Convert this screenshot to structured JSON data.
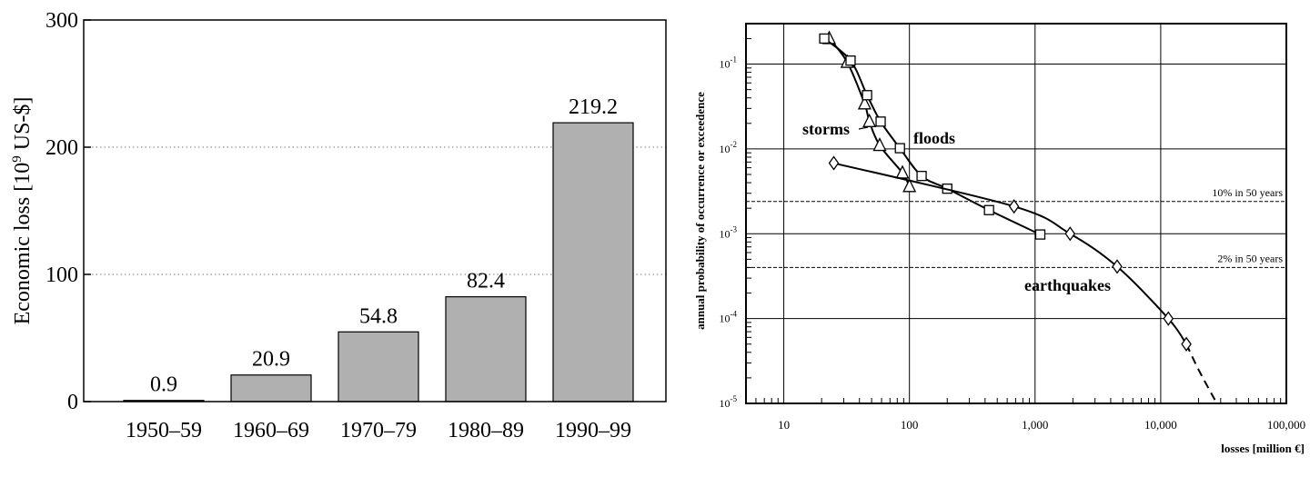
{
  "chart_data": [
    {
      "type": "bar",
      "title": "",
      "xlabel": "",
      "ylabel_main": "Economic loss [10",
      "ylabel_sup": "9",
      "ylabel_tail": " US-$]",
      "categories": [
        "1950–59",
        "1960–69",
        "1970–79",
        "1980–89",
        "1990–99"
      ],
      "values": [
        0.9,
        20.9,
        54.8,
        82.4,
        219.2
      ],
      "value_labels": [
        "0.9",
        "20.9",
        "54.8",
        "82.4",
        "219.2"
      ],
      "ylim": [
        0,
        300
      ],
      "yticks": [
        0,
        100,
        200,
        300
      ],
      "ytick_labels": [
        "0",
        "100",
        "200",
        "300"
      ],
      "grid": "horizontal dotted at 100 and 200",
      "bar_color": "#b0b0b0"
    },
    {
      "type": "line",
      "xscale": "log",
      "yscale": "log",
      "xlabel": "losses [million €]",
      "ylabel": "annual probability of occurrence or exceedence",
      "xlim": [
        5,
        100000
      ],
      "ylim": [
        1e-05,
        0.3
      ],
      "xticks": [
        10,
        100,
        1000,
        10000,
        100000
      ],
      "xtick_labels": [
        "10",
        "100",
        "1,000",
        "10,000",
        "100,000"
      ],
      "yticks": [
        0.1,
        0.01,
        0.001,
        0.0001,
        1e-05
      ],
      "ytick_base": [
        "10",
        "10",
        "10",
        "10",
        "10"
      ],
      "ytick_exp": [
        "-1",
        "-2",
        "-3",
        "-4",
        "-5"
      ],
      "grid": true,
      "series": [
        {
          "name": "storms",
          "marker": "triangle",
          "x": [
            23,
            32,
            44,
            48,
            58,
            88,
            100
          ],
          "y": [
            0.2,
            0.105,
            0.034,
            0.021,
            0.011,
            0.0052,
            0.0036
          ]
        },
        {
          "name": "floods",
          "marker": "square",
          "x": [
            21,
            34,
            46,
            59,
            84,
            125,
            200,
            430,
            1100
          ],
          "y": [
            0.2,
            0.11,
            0.043,
            0.021,
            0.0102,
            0.0048,
            0.0034,
            0.0019,
            0.00098
          ]
        },
        {
          "name": "earthquakes",
          "marker": "diamond",
          "x": [
            25,
            680,
            1900,
            4500,
            11500,
            16000
          ],
          "y": [
            0.0068,
            0.0021,
            0.001,
            0.00041,
            0.0001,
            5e-05
          ],
          "dashed_extension": {
            "x": [
              16000,
              20000,
              27000
            ],
            "y": [
              5e-05,
              2.5e-05,
              1.1e-05
            ]
          }
        }
      ],
      "reference_lines": [
        {
          "label": "10% in 50 years",
          "y": 0.0024
        },
        {
          "label": "2% in 50 years",
          "y": 0.0004
        }
      ]
    }
  ]
}
